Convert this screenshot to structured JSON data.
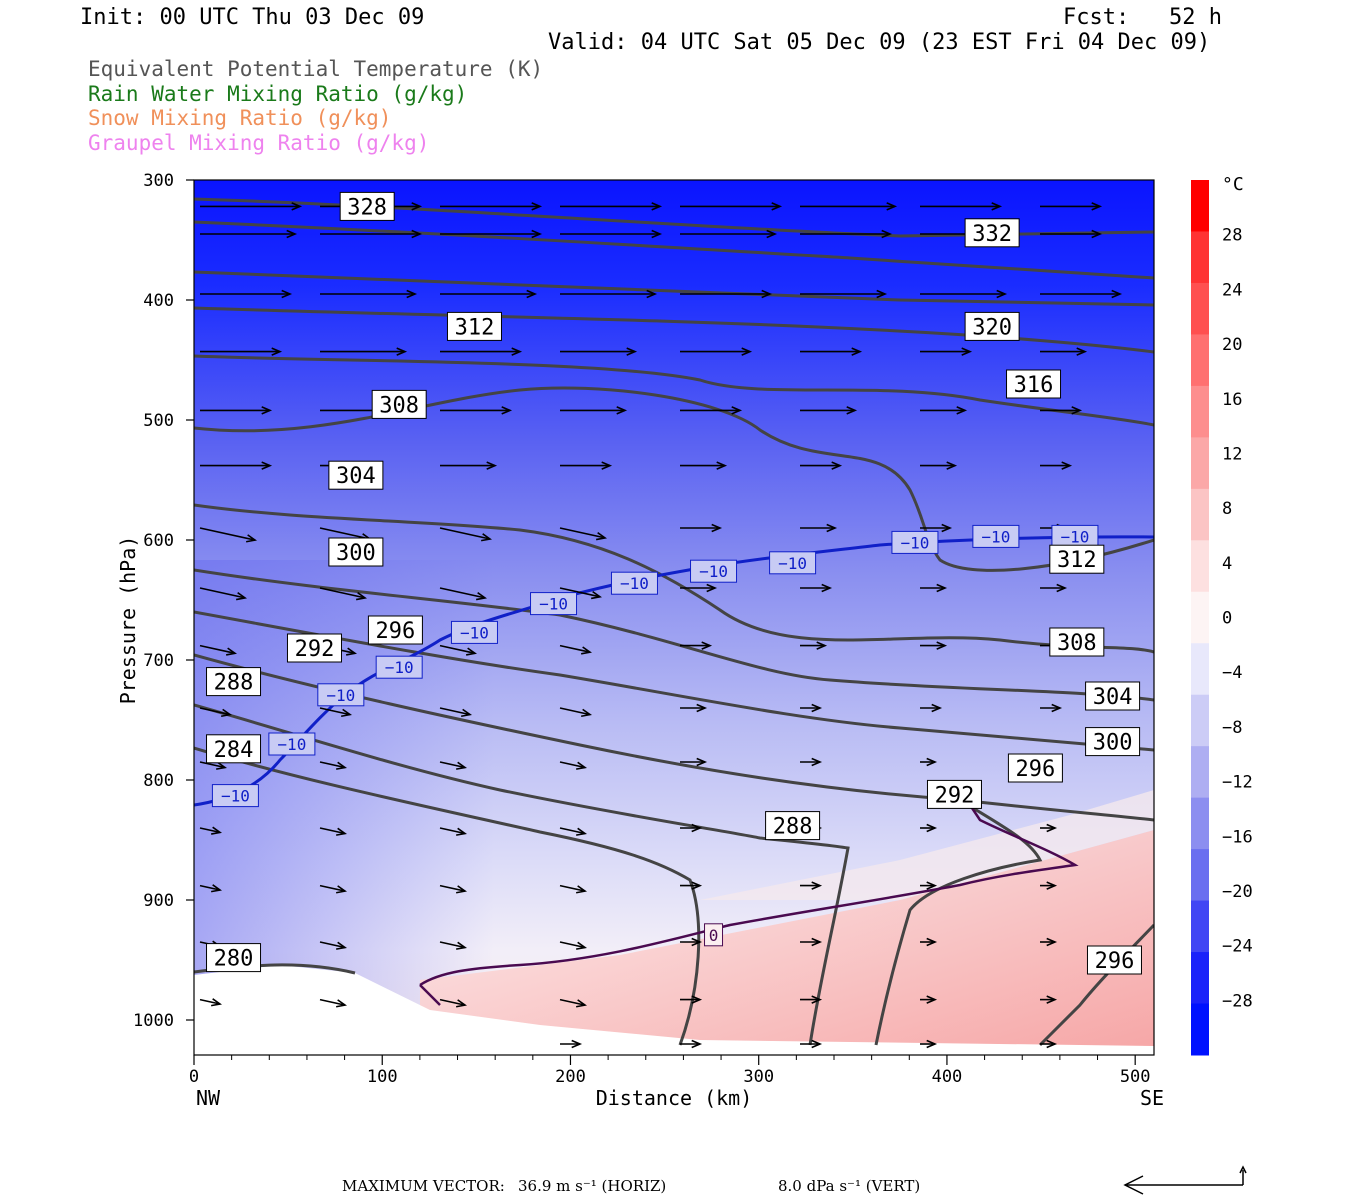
{
  "header": {
    "init": "Init: 00 UTC Thu 03 Dec 09",
    "fcst": "Fcst:   52 h",
    "valid": "Valid: 04 UTC Sat 05 Dec 09 (23 EST Fri 04 Dec 09)"
  },
  "legend": [
    {
      "label": "Equivalent Potential Temperature (K)",
      "color": "#555555"
    },
    {
      "label": "Rain Water Mixing Ratio (g/kg)",
      "color": "#1a7a1a"
    },
    {
      "label": "Snow Mixing Ratio (g/kg)",
      "color": "#f0905a"
    },
    {
      "label": "Graupel Mixing Ratio (g/kg)",
      "color": "#ee82ee"
    }
  ],
  "chart_data": {
    "type": "cross-section",
    "xlabel": "Distance (km)",
    "ylabel": "Pressure (hPa)",
    "xlim": [
      0,
      510
    ],
    "ylim": [
      1025,
      300
    ],
    "y_scale": "linear (pressure decreasing upward)",
    "x_ticks": [
      "0",
      "100",
      "200",
      "300",
      "400",
      "500"
    ],
    "x_tick_values": [
      0,
      100,
      200,
      300,
      400,
      500
    ],
    "y_ticks": [
      "300",
      "400",
      "500",
      "600",
      "700",
      "800",
      "900",
      "1000"
    ],
    "y_tick_values": [
      300,
      400,
      500,
      600,
      700,
      800,
      900,
      1000
    ],
    "left_end": "NW",
    "right_end": "SE",
    "colorbar": {
      "unit": "°C",
      "labels": [
        "28",
        "24",
        "20",
        "16",
        "12",
        "8",
        "4",
        "0",
        "−4",
        "−8",
        "−12",
        "−16",
        "−20",
        "−24",
        "−28"
      ],
      "values": [
        28,
        24,
        20,
        16,
        12,
        8,
        4,
        0,
        -4,
        -8,
        -12,
        -16,
        -20,
        -24,
        -28
      ],
      "range": [
        -32,
        32
      ]
    },
    "theta_e_labels": [
      {
        "text": "328",
        "x": 92,
        "p": 322
      },
      {
        "text": "332",
        "x": 424,
        "p": 344
      },
      {
        "text": "312",
        "x": 149,
        "p": 422
      },
      {
        "text": "320",
        "x": 424,
        "p": 422
      },
      {
        "text": "308",
        "x": 109,
        "p": 487
      },
      {
        "text": "316",
        "x": 446,
        "p": 470
      },
      {
        "text": "304",
        "x": 86,
        "p": 546
      },
      {
        "text": "300",
        "x": 86,
        "p": 610
      },
      {
        "text": "312",
        "x": 469,
        "p": 616
      },
      {
        "text": "296",
        "x": 107,
        "p": 675
      },
      {
        "text": "292",
        "x": 64,
        "p": 690
      },
      {
        "text": "308",
        "x": 469,
        "p": 685
      },
      {
        "text": "288",
        "x": 21,
        "p": 718
      },
      {
        "text": "304",
        "x": 488,
        "p": 730
      },
      {
        "text": "284",
        "x": 21,
        "p": 774
      },
      {
        "text": "300",
        "x": 488,
        "p": 768
      },
      {
        "text": "296",
        "x": 447,
        "p": 790
      },
      {
        "text": "292",
        "x": 404,
        "p": 812
      },
      {
        "text": "288",
        "x": 318,
        "p": 838
      },
      {
        "text": "280",
        "x": 21,
        "p": 948
      },
      {
        "text": "296",
        "x": 489,
        "p": 950
      }
    ],
    "isotherm_labels": [
      {
        "text": "−10",
        "x": 22,
        "p": 813
      },
      {
        "text": "−10",
        "x": 52,
        "p": 770
      },
      {
        "text": "−10",
        "x": 78,
        "p": 729
      },
      {
        "text": "−10",
        "x": 109,
        "p": 706
      },
      {
        "text": "−10",
        "x": 149,
        "p": 677
      },
      {
        "text": "−10",
        "x": 191,
        "p": 653
      },
      {
        "text": "−10",
        "x": 234,
        "p": 636
      },
      {
        "text": "−10",
        "x": 276,
        "p": 626
      },
      {
        "text": "−10",
        "x": 318,
        "p": 619
      },
      {
        "text": "−10",
        "x": 383,
        "p": 602
      },
      {
        "text": "−10",
        "x": 426,
        "p": 597
      },
      {
        "text": "−10",
        "x": 468,
        "p": 597
      }
    ],
    "zero_isotherm_label": {
      "text": "0",
      "x": 276,
      "p": 929
    },
    "max_vector": {
      "label": "MAXIMUM VECTOR:",
      "horiz": "36.9 m s⁻¹ (HORIZ)",
      "vert": "8.0 dPa s⁻¹ (VERT)"
    }
  },
  "colors": {
    "theta_e": "#444444",
    "isotherm_minus10": "#1020c8",
    "isotherm_zero": "#4a0a50",
    "ground": "#ffffff"
  }
}
